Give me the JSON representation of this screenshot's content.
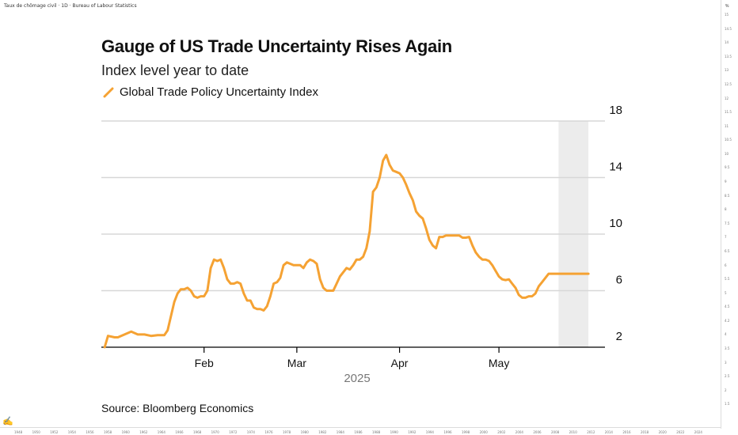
{
  "topbar": {
    "text": "Taux de chômage civil · 1D · Bureau of Labour Statistics"
  },
  "right_scale": {
    "unit": "%",
    "labels": [
      "15",
      "14.5",
      "14",
      "13.5",
      "13",
      "12.5",
      "12",
      "11.5",
      "11",
      "10.5",
      "10",
      "9.5",
      "9",
      "8.5",
      "8",
      "7.5",
      "7",
      "6.5",
      "6",
      "5.5",
      "5",
      "4.5",
      "4.2",
      "4",
      "3.5",
      "3",
      "2.5",
      "2",
      "1.5"
    ]
  },
  "bottom_scale": {
    "labels": [
      "1948",
      "1950",
      "1952",
      "1954",
      "1956",
      "1958",
      "1960",
      "1962",
      "1964",
      "1966",
      "1968",
      "1970",
      "1972",
      "1974",
      "1976",
      "1978",
      "1980",
      "1982",
      "1984",
      "1986",
      "1988",
      "1990",
      "1992",
      "1994",
      "1996",
      "1998",
      "2000",
      "2002",
      "2004",
      "2006",
      "2008",
      "2010",
      "2012",
      "2014",
      "2016",
      "2018",
      "2020",
      "2022",
      "2024"
    ]
  },
  "colors": {
    "line": "#F5A233",
    "grid": "#d7d7d7",
    "shade": "#ececec",
    "axis": "#000000"
  },
  "source": "Source: Bloomberg Economics",
  "chart_data": {
    "type": "line",
    "title": "Gauge of US Trade Uncertainty Rises Again",
    "subtitle": "Index level year to date",
    "year_label": "2025",
    "legend_position": "top-left",
    "grid": true,
    "y_axis_side": "right",
    "ylim": [
      2,
      18
    ],
    "yticks": [
      "2",
      "6",
      "10",
      "14",
      "18"
    ],
    "xlim": [
      "2025-01-01",
      "2025-06-02"
    ],
    "xticks": [
      {
        "label": "Feb",
        "date": "2025-02-01"
      },
      {
        "label": "Mar",
        "date": "2025-03-01"
      },
      {
        "label": "Apr",
        "date": "2025-04-01"
      },
      {
        "label": "May",
        "date": "2025-05-01"
      }
    ],
    "shaded_region": [
      "2025-05-19",
      "2025-05-28"
    ],
    "series": [
      {
        "name": "Global Trade Policy Uncertainty Index",
        "x": [
          "2025-01-02",
          "2025-01-03",
          "2025-01-05",
          "2025-01-06",
          "2025-01-08",
          "2025-01-10",
          "2025-01-12",
          "2025-01-14",
          "2025-01-16",
          "2025-01-18",
          "2025-01-20",
          "2025-01-21",
          "2025-01-22",
          "2025-01-23",
          "2025-01-24",
          "2025-01-25",
          "2025-01-26",
          "2025-01-27",
          "2025-01-28",
          "2025-01-29",
          "2025-01-30",
          "2025-01-31",
          "2025-02-01",
          "2025-02-02",
          "2025-02-03",
          "2025-02-04",
          "2025-02-05",
          "2025-02-06",
          "2025-02-07",
          "2025-02-08",
          "2025-02-09",
          "2025-02-10",
          "2025-02-11",
          "2025-02-12",
          "2025-02-13",
          "2025-02-14",
          "2025-02-15",
          "2025-02-16",
          "2025-02-17",
          "2025-02-18",
          "2025-02-19",
          "2025-02-20",
          "2025-02-21",
          "2025-02-22",
          "2025-02-23",
          "2025-02-24",
          "2025-02-25",
          "2025-02-26",
          "2025-02-27",
          "2025-02-28",
          "2025-03-01",
          "2025-03-02",
          "2025-03-03",
          "2025-03-04",
          "2025-03-05",
          "2025-03-06",
          "2025-03-07",
          "2025-03-08",
          "2025-03-09",
          "2025-03-10",
          "2025-03-11",
          "2025-03-12",
          "2025-03-13",
          "2025-03-14",
          "2025-03-15",
          "2025-03-16",
          "2025-03-17",
          "2025-03-18",
          "2025-03-19",
          "2025-03-20",
          "2025-03-21",
          "2025-03-22",
          "2025-03-23",
          "2025-03-24",
          "2025-03-25",
          "2025-03-26",
          "2025-03-27",
          "2025-03-28",
          "2025-03-29",
          "2025-03-30",
          "2025-03-31",
          "2025-04-01",
          "2025-04-02",
          "2025-04-03",
          "2025-04-04",
          "2025-04-05",
          "2025-04-06",
          "2025-04-07",
          "2025-04-08",
          "2025-04-09",
          "2025-04-10",
          "2025-04-11",
          "2025-04-12",
          "2025-04-13",
          "2025-04-14",
          "2025-04-15",
          "2025-04-16",
          "2025-04-17",
          "2025-04-18",
          "2025-04-19",
          "2025-04-20",
          "2025-04-21",
          "2025-04-22",
          "2025-04-23",
          "2025-04-24",
          "2025-04-25",
          "2025-04-26",
          "2025-04-27",
          "2025-04-28",
          "2025-04-29",
          "2025-04-30",
          "2025-05-01",
          "2025-05-02",
          "2025-05-03",
          "2025-05-04",
          "2025-05-05",
          "2025-05-06",
          "2025-05-07",
          "2025-05-08",
          "2025-05-09",
          "2025-05-10",
          "2025-05-11",
          "2025-05-12",
          "2025-05-13",
          "2025-05-14",
          "2025-05-15",
          "2025-05-16",
          "2025-05-17",
          "2025-05-18",
          "2025-05-19",
          "2025-05-20",
          "2025-05-21",
          "2025-05-22",
          "2025-05-23",
          "2025-05-24",
          "2025-05-25",
          "2025-05-26",
          "2025-05-27",
          "2025-05-28"
        ],
        "y": [
          2.0,
          2.8,
          2.7,
          2.7,
          2.9,
          3.1,
          2.9,
          2.9,
          2.8,
          2.85,
          2.85,
          3.2,
          4.2,
          5.2,
          5.8,
          6.1,
          6.1,
          6.2,
          6.0,
          5.6,
          5.5,
          5.6,
          5.6,
          6.0,
          7.6,
          8.2,
          8.1,
          8.2,
          7.6,
          6.8,
          6.5,
          6.5,
          6.6,
          6.5,
          5.8,
          5.3,
          5.3,
          4.8,
          4.7,
          4.7,
          4.6,
          4.9,
          5.6,
          6.5,
          6.6,
          6.9,
          7.8,
          8.0,
          7.9,
          7.8,
          7.8,
          7.8,
          7.6,
          8.0,
          8.2,
          8.1,
          7.9,
          6.8,
          6.2,
          6.0,
          6.0,
          6.0,
          6.5,
          7.0,
          7.3,
          7.6,
          7.5,
          7.8,
          8.2,
          8.2,
          8.4,
          9.0,
          10.2,
          13.0,
          13.3,
          14.0,
          15.2,
          15.6,
          14.9,
          14.5,
          14.4,
          14.3,
          14.0,
          13.5,
          12.9,
          12.4,
          11.6,
          11.3,
          11.1,
          10.4,
          9.6,
          9.2,
          9.0,
          9.8,
          9.8,
          9.9,
          9.9,
          9.9,
          9.9,
          9.9,
          9.75,
          9.75,
          9.8,
          9.2,
          8.7,
          8.4,
          8.2,
          8.2,
          8.1,
          7.8,
          7.4,
          7.0,
          6.8,
          6.75,
          6.8,
          6.5,
          6.2,
          5.7,
          5.5,
          5.5,
          5.6,
          5.6,
          5.8,
          6.3,
          6.6,
          6.9,
          7.2,
          7.2,
          7.2,
          7.2,
          7.2,
          7.2,
          7.2,
          7.2,
          7.2,
          7.2,
          7.2,
          7.2,
          7.2
        ]
      }
    ]
  }
}
